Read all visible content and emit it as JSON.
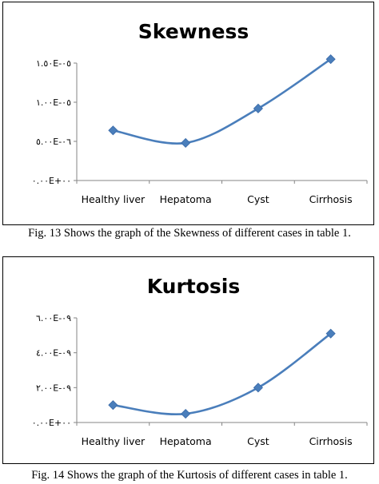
{
  "figures": [
    {
      "caption": "Fig. 13 Shows the graph of the Skewness of different cases in table 1.",
      "chart_data": {
        "type": "line",
        "title": "Skewness",
        "categories": [
          "Healthy liver",
          "Hepatoma",
          "Cyst",
          "Cirrhosis"
        ],
        "series": [
          {
            "values": [
              6.4e-06,
              4.8e-06,
              9.2e-06,
              1.55e-05
            ]
          }
        ],
        "ylim": [
          0,
          1.5e-05
        ],
        "yticks": [
          0,
          5e-06,
          1e-05,
          1.5e-05
        ],
        "ytick_labels": [
          "٠.٠٠E+٠٠",
          "٥.٠٠E-٠٦",
          "١.٠٠E-٠٥",
          "١.٥٠E-٠٥"
        ],
        "grid": false,
        "legend": "none",
        "line_color": "#4a7ebb",
        "marker": "diamond"
      }
    },
    {
      "caption": "Fig. 14 Shows the graph of the Kurtosis of different cases in table 1.",
      "chart_data": {
        "type": "line",
        "title": "Kurtosis",
        "categories": [
          "Healthy liver",
          "Hepatoma",
          "Cyst",
          "Cirrhosis"
        ],
        "series": [
          {
            "values": [
              1e-09,
              5e-10,
              2e-09,
              5.1e-09
            ]
          }
        ],
        "ylim": [
          0,
          6e-09
        ],
        "yticks": [
          0,
          2e-09,
          4e-09,
          6e-09
        ],
        "ytick_labels": [
          "٠.٠٠E+٠٠",
          "٢.٠٠E-٠٩",
          "٤.٠٠E-٠٩",
          "٦.٠٠E-٠٩"
        ],
        "grid": false,
        "legend": "none",
        "line_color": "#4a7ebb",
        "marker": "diamond"
      }
    }
  ]
}
